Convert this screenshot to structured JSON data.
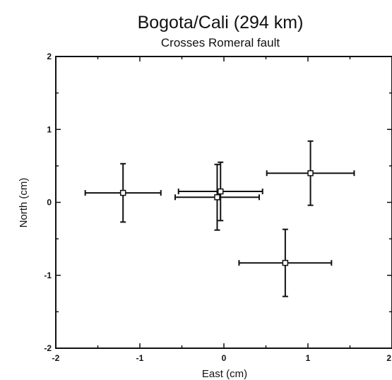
{
  "chart_data": {
    "type": "scatter",
    "title": "Bogota/Cali (294 km)",
    "subtitle": "Crosses Romeral fault",
    "xlabel": "East (cm)",
    "ylabel": "North (cm)",
    "xlim": [
      -2,
      2
    ],
    "ylim": [
      -2,
      2
    ],
    "xticks": [
      -2,
      -1,
      0,
      1,
      2
    ],
    "yticks": [
      -2,
      -1,
      0,
      1,
      2
    ],
    "xtick_labels": [
      "-2",
      "-1",
      "0",
      "1",
      "2"
    ],
    "ytick_labels": [
      "-2",
      "-1",
      "0",
      "1",
      "2"
    ],
    "grid": false,
    "points": [
      {
        "x": -1.2,
        "y": 0.13,
        "xerr": 0.45,
        "yerr": 0.4
      },
      {
        "x": -0.04,
        "y": 0.15,
        "xerr": 0.5,
        "yerr": 0.4
      },
      {
        "x": -0.08,
        "y": 0.07,
        "xerr": 0.5,
        "yerr": 0.45
      },
      {
        "x": 1.03,
        "y": 0.4,
        "xerr": 0.52,
        "yerr": 0.44
      },
      {
        "x": 0.73,
        "y": -0.83,
        "xerr": 0.55,
        "yerr": 0.46
      }
    ]
  }
}
